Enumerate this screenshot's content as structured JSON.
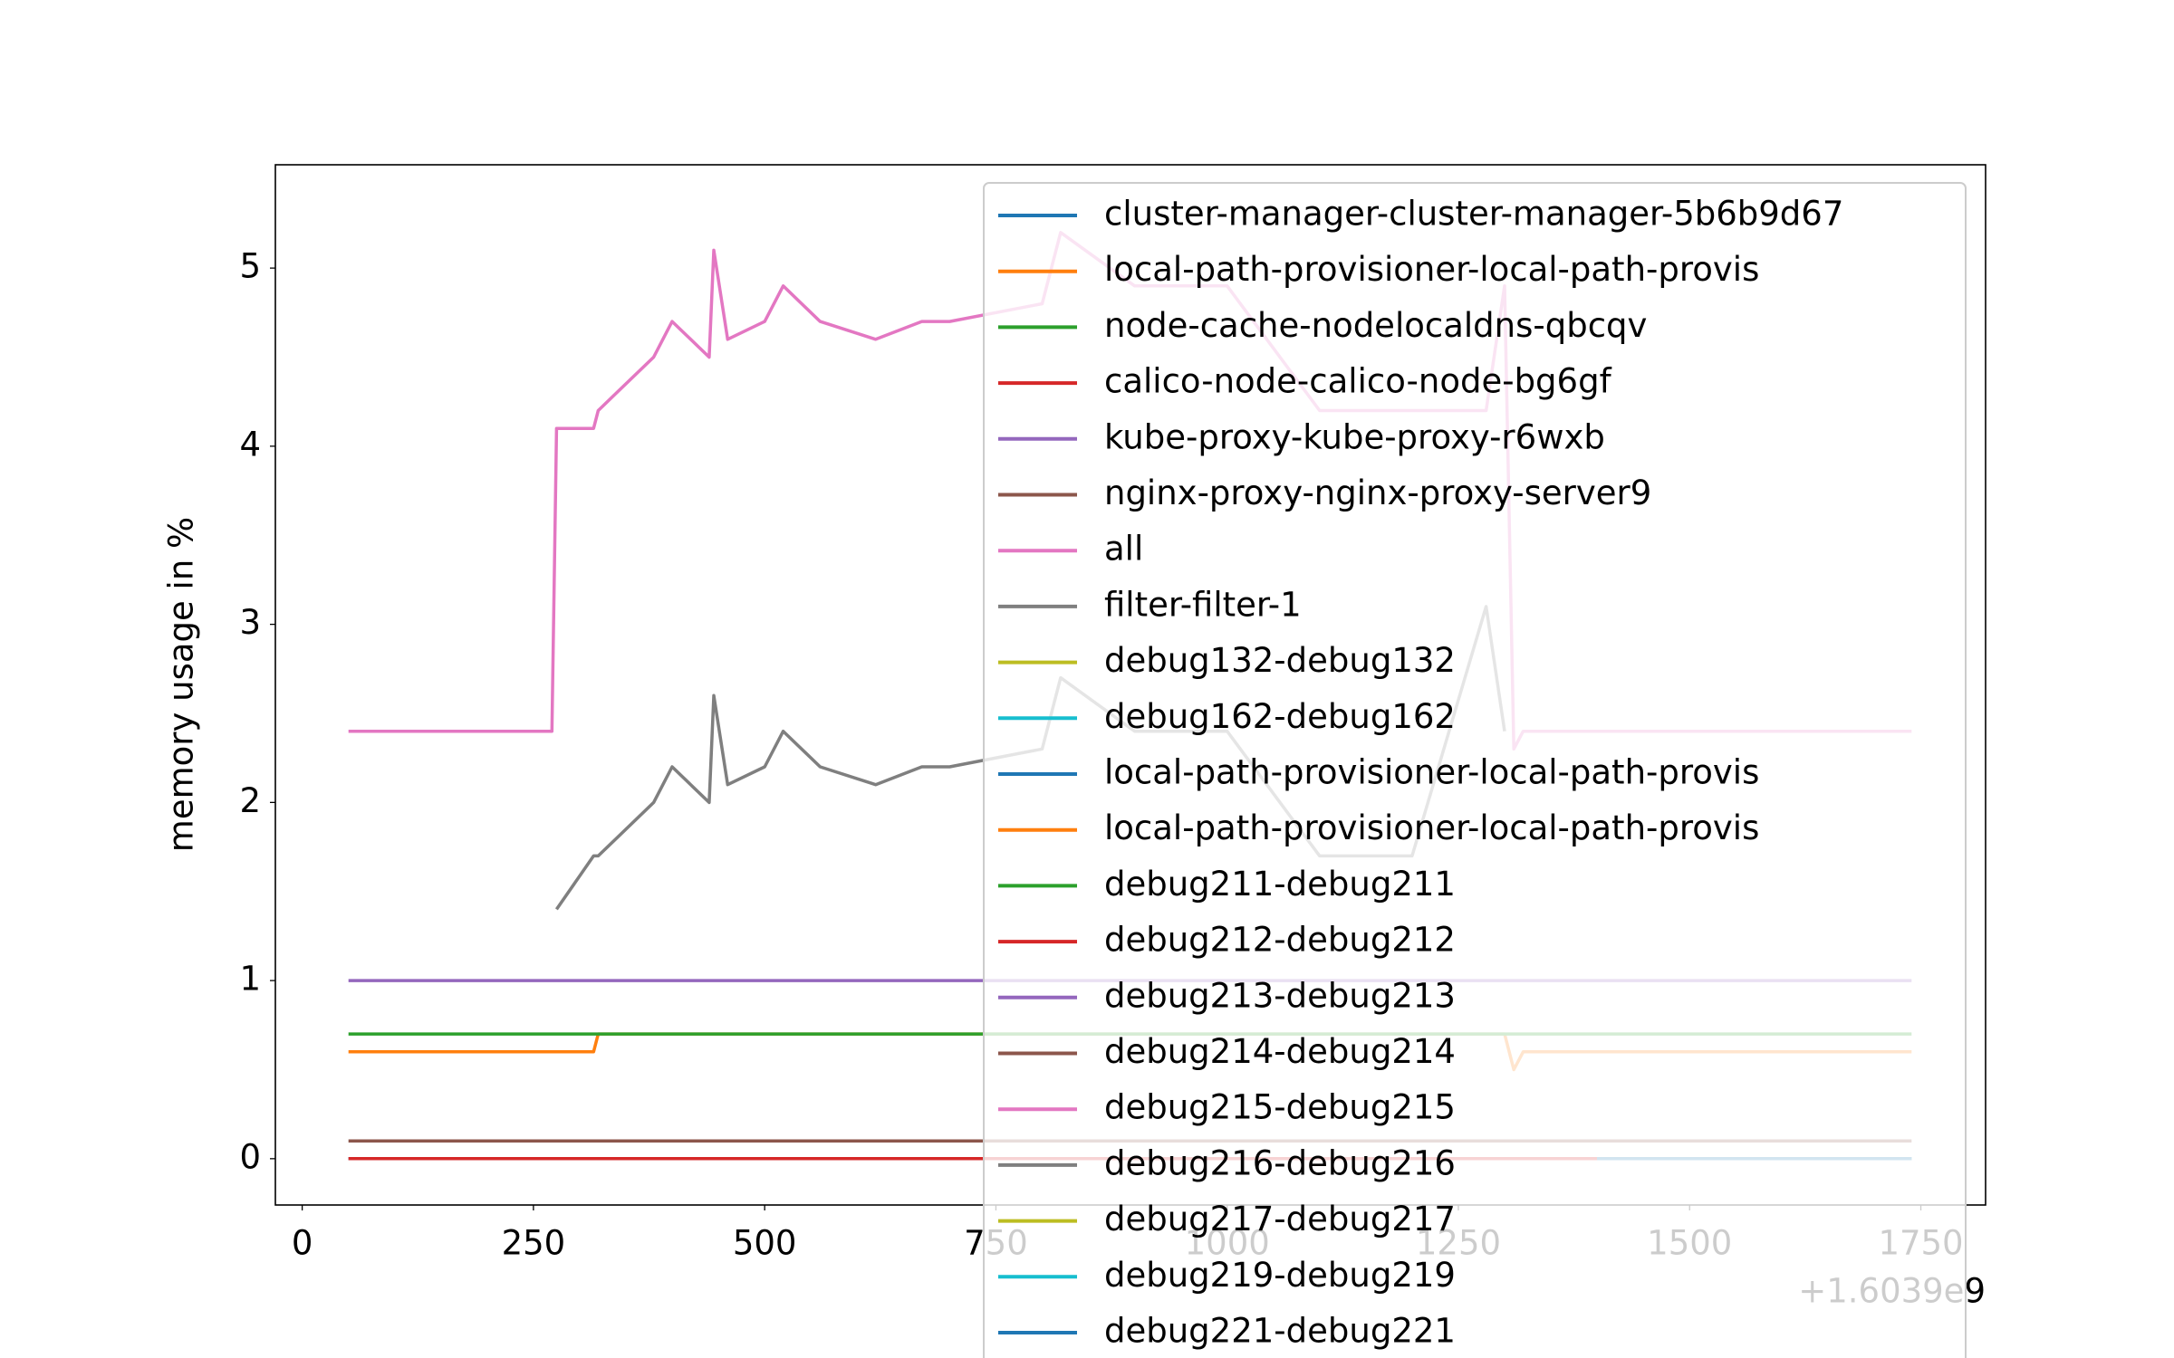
{
  "chart_data": {
    "type": "line",
    "ylabel": "memory usage in %",
    "x_offset_label": "+1.6039e9",
    "x": [
      50,
      270,
      275,
      315,
      320,
      340,
      380,
      400,
      440,
      445,
      460,
      500,
      520,
      560,
      620,
      670,
      700,
      800,
      820,
      900,
      1000,
      1100,
      1200,
      1280,
      1300,
      1310,
      1320,
      1400,
      1500,
      1600,
      1740
    ],
    "xlim": [
      -29,
      1820
    ],
    "xticks": [
      0,
      250,
      500,
      750,
      1000,
      1250,
      1500,
      1750
    ],
    "ylim": [
      -0.26,
      5.58
    ],
    "yticks": [
      0,
      1,
      2,
      3,
      4,
      5
    ],
    "legend": "upper right",
    "series": [
      {
        "name": "cluster-manager-cluster-manager-5b6b9d67",
        "color": "#1f77b4",
        "values": [
          0,
          0,
          0,
          0,
          0,
          0,
          0,
          0,
          0,
          0,
          0,
          0,
          0,
          0,
          0,
          0,
          0,
          0,
          0,
          0,
          0,
          0,
          0,
          0,
          0,
          0,
          0,
          0,
          0,
          0,
          0
        ]
      },
      {
        "name": "local-path-provisioner-local-path-provis",
        "color": "#ff7f0e",
        "values": [
          0.6,
          0.6,
          0.6,
          0.6,
          0.7,
          0.7,
          0.7,
          0.7,
          0.7,
          0.7,
          0.7,
          0.7,
          0.7,
          0.7,
          0.7,
          0.7,
          0.7,
          0.7,
          0.7,
          0.7,
          0.7,
          0.7,
          0.7,
          0.7,
          0.7,
          0.5,
          0.6,
          0.6,
          0.6,
          0.6,
          0.6
        ]
      },
      {
        "name": "node-cache-nodelocaldns-qbcqv",
        "color": "#2ca02c",
        "values": [
          0.7,
          0.7,
          0.7,
          0.7,
          0.7,
          0.7,
          0.7,
          0.7,
          0.7,
          0.7,
          0.7,
          0.7,
          0.7,
          0.7,
          0.7,
          0.7,
          0.7,
          0.7,
          0.7,
          0.7,
          0.7,
          0.7,
          0.7,
          0.7,
          0.7,
          0.7,
          0.7,
          0.7,
          0.7,
          0.7,
          0.7
        ]
      },
      {
        "name": "calico-node-calico-node-bg6gf",
        "color": "#d62728",
        "values": [
          0,
          0,
          0,
          0,
          0,
          0,
          0,
          0,
          0,
          0,
          0,
          0,
          0,
          0,
          0,
          0,
          0,
          0,
          0,
          0,
          0,
          0,
          0,
          0,
          0,
          0,
          0,
          0,
          0,
          0,
          0
        ]
      },
      {
        "name": "kube-proxy-kube-proxy-r6wxb",
        "color": "#9467bd",
        "values": [
          1,
          1,
          1,
          1,
          1,
          1,
          1,
          1,
          1,
          1,
          1,
          1,
          1,
          1,
          1,
          1,
          1,
          1,
          1,
          1,
          1,
          1,
          1,
          1,
          1,
          1,
          1,
          1,
          1,
          1,
          1
        ]
      },
      {
        "name": "nginx-proxy-nginx-proxy-server9",
        "color": "#8c564b",
        "values": [
          0.1,
          0.1,
          0.1,
          0.1,
          0.1,
          0.1,
          0.1,
          0.1,
          0.1,
          0.1,
          0.1,
          0.1,
          0.1,
          0.1,
          0.1,
          0.1,
          0.1,
          0.1,
          0.1,
          0.1,
          0.1,
          0.1,
          0.1,
          0.1,
          0.1,
          0.1,
          0.1,
          0.1,
          0.1,
          0.1,
          0.1
        ]
      },
      {
        "name": "all",
        "color": "#e377c2",
        "values": [
          2.4,
          2.4,
          4.1,
          4.1,
          4.2,
          4.3,
          4.5,
          4.7,
          4.5,
          5.1,
          4.6,
          4.7,
          4.9,
          4.7,
          4.6,
          4.7,
          4.7,
          4.8,
          5.2,
          4.9,
          4.9,
          4.2,
          4.2,
          4.2,
          4.9,
          2.3,
          2.4,
          2.4,
          2.4,
          2.4,
          2.4
        ]
      },
      {
        "name": "filter-filter-1",
        "color": "#7f7f7f",
        "values": [
          null,
          null,
          1.4,
          1.7,
          1.7,
          1.8,
          2.0,
          2.2,
          2.0,
          2.6,
          2.1,
          2.2,
          2.4,
          2.2,
          2.1,
          2.2,
          2.2,
          2.3,
          2.7,
          2.4,
          2.4,
          1.7,
          1.7,
          3.1,
          2.4,
          null,
          null,
          null,
          null,
          null,
          null
        ]
      },
      {
        "name": "debug132-debug132",
        "color": "#bcbd22",
        "values": [
          null,
          null,
          null,
          null,
          null,
          null,
          null,
          null,
          null,
          null,
          null,
          null,
          null,
          null,
          null,
          null,
          null,
          null,
          null,
          null,
          null,
          null,
          null,
          null,
          null,
          null,
          null,
          0,
          0,
          0,
          0
        ]
      },
      {
        "name": "debug162-debug162",
        "color": "#17becf",
        "values": [
          null,
          null,
          null,
          null,
          null,
          null,
          null,
          null,
          null,
          null,
          null,
          null,
          null,
          null,
          null,
          null,
          null,
          null,
          null,
          null,
          null,
          null,
          null,
          null,
          null,
          null,
          null,
          0,
          0,
          0,
          0
        ]
      },
      {
        "name": "local-path-provisioner-local-path-provis",
        "color": "#1f77b4",
        "values": [
          null,
          null,
          null,
          null,
          null,
          null,
          null,
          null,
          null,
          null,
          null,
          null,
          null,
          null,
          null,
          null,
          null,
          null,
          null,
          null,
          null,
          null,
          null,
          null,
          null,
          null,
          null,
          0,
          0,
          0,
          0
        ]
      },
      {
        "name": "local-path-provisioner-local-path-provis",
        "color": "#ff7f0e",
        "values": [
          null,
          null,
          null,
          null,
          null,
          null,
          null,
          null,
          null,
          null,
          null,
          null,
          null,
          null,
          null,
          null,
          null,
          null,
          null,
          null,
          null,
          null,
          null,
          null,
          null,
          null,
          null,
          0,
          0,
          0,
          0
        ]
      },
      {
        "name": "debug211-debug211",
        "color": "#2ca02c",
        "values": [
          null,
          null,
          null,
          null,
          null,
          null,
          null,
          null,
          null,
          null,
          null,
          null,
          null,
          null,
          null,
          null,
          null,
          null,
          null,
          null,
          null,
          null,
          null,
          null,
          null,
          null,
          null,
          0,
          0,
          0,
          0
        ]
      },
      {
        "name": "debug212-debug212",
        "color": "#d62728",
        "values": [
          null,
          null,
          null,
          null,
          null,
          null,
          null,
          null,
          null,
          null,
          null,
          null,
          null,
          null,
          null,
          null,
          null,
          null,
          null,
          null,
          null,
          null,
          null,
          null,
          null,
          null,
          null,
          0,
          0,
          0,
          0
        ]
      },
      {
        "name": "debug213-debug213",
        "color": "#9467bd",
        "values": [
          null,
          null,
          null,
          null,
          null,
          null,
          null,
          null,
          null,
          null,
          null,
          null,
          null,
          null,
          null,
          null,
          null,
          null,
          null,
          null,
          null,
          null,
          null,
          null,
          null,
          null,
          null,
          0,
          0,
          0,
          0
        ]
      },
      {
        "name": "debug214-debug214",
        "color": "#8c564b",
        "values": [
          null,
          null,
          null,
          null,
          null,
          null,
          null,
          null,
          null,
          null,
          null,
          null,
          null,
          null,
          null,
          null,
          null,
          null,
          null,
          null,
          null,
          null,
          null,
          null,
          null,
          null,
          null,
          0,
          0,
          0,
          0
        ]
      },
      {
        "name": "debug215-debug215",
        "color": "#e377c2",
        "values": [
          null,
          null,
          null,
          null,
          null,
          null,
          null,
          null,
          null,
          null,
          null,
          null,
          null,
          null,
          null,
          null,
          null,
          null,
          null,
          null,
          null,
          null,
          null,
          null,
          null,
          null,
          null,
          0,
          0,
          0,
          0
        ]
      },
      {
        "name": "debug216-debug216",
        "color": "#7f7f7f",
        "values": [
          null,
          null,
          null,
          null,
          null,
          null,
          null,
          null,
          null,
          null,
          null,
          null,
          null,
          null,
          null,
          null,
          null,
          null,
          null,
          null,
          null,
          null,
          null,
          null,
          null,
          null,
          null,
          0,
          0,
          0,
          0
        ]
      },
      {
        "name": "debug217-debug217",
        "color": "#bcbd22",
        "values": [
          null,
          null,
          null,
          null,
          null,
          null,
          null,
          null,
          null,
          null,
          null,
          null,
          null,
          null,
          null,
          null,
          null,
          null,
          null,
          null,
          null,
          null,
          null,
          null,
          null,
          null,
          null,
          0,
          0,
          0,
          0
        ]
      },
      {
        "name": "debug219-debug219",
        "color": "#17becf",
        "values": [
          null,
          null,
          null,
          null,
          null,
          null,
          null,
          null,
          null,
          null,
          null,
          null,
          null,
          null,
          null,
          null,
          null,
          null,
          null,
          null,
          null,
          null,
          null,
          null,
          null,
          null,
          null,
          0,
          0,
          0,
          0
        ]
      },
      {
        "name": "debug221-debug221",
        "color": "#1f77b4",
        "values": [
          null,
          null,
          null,
          null,
          null,
          null,
          null,
          null,
          null,
          null,
          null,
          null,
          null,
          null,
          null,
          null,
          null,
          null,
          null,
          null,
          null,
          null,
          null,
          null,
          null,
          null,
          null,
          0,
          0,
          0,
          0
        ]
      }
    ]
  }
}
